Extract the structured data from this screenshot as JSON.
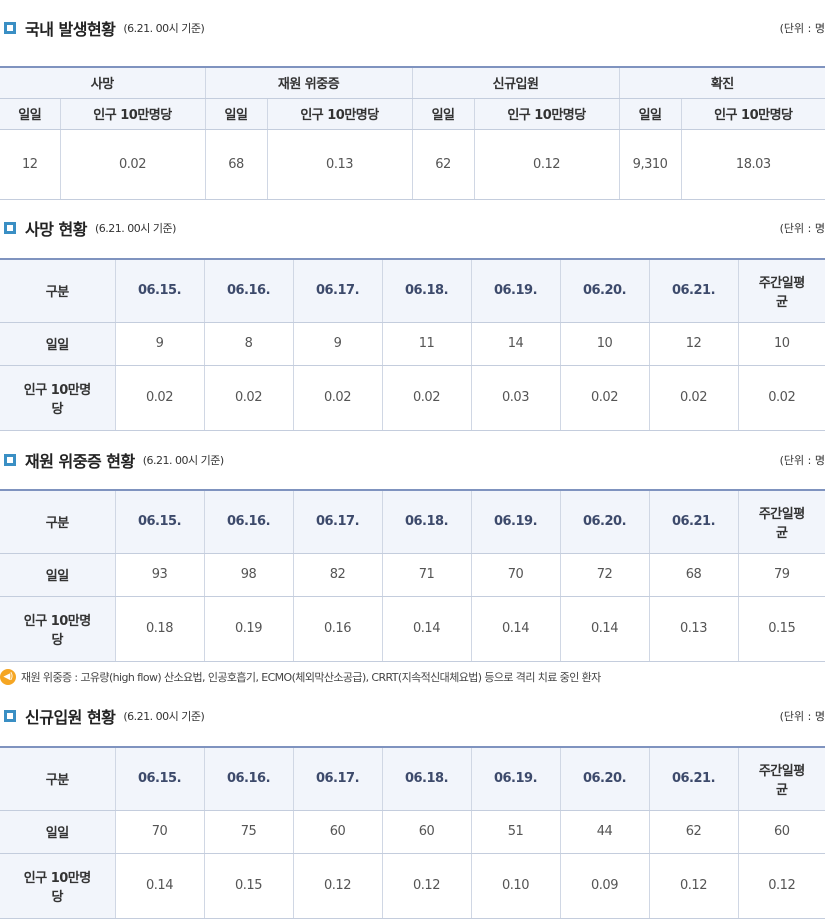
{
  "unit_label": "(단위 : 명",
  "summary": {
    "title": "국내 발생현황",
    "basis": "(6.21. 00시 기준)",
    "groups": [
      "사망",
      "재원 위중증",
      "신규입원",
      "확진"
    ],
    "sub_headers": [
      "일일",
      "인구 10만명당"
    ],
    "values": [
      [
        "12",
        "0.02"
      ],
      [
        "68",
        "0.13"
      ],
      [
        "62",
        "0.12"
      ],
      [
        "9,310",
        "18.03"
      ]
    ]
  },
  "sections": [
    {
      "title": "사망 현황",
      "basis": "(6.21. 00시 기준)",
      "headers": [
        "구분",
        "06.15.",
        "06.16.",
        "06.17.",
        "06.18.",
        "06.19.",
        "06.20.",
        "06.21.",
        "주간일평균"
      ],
      "rows": [
        {
          "label": "일일",
          "values": [
            "9",
            "8",
            "9",
            "11",
            "14",
            "10",
            "12",
            "10"
          ]
        },
        {
          "label": "인구 10만명당",
          "values": [
            "0.02",
            "0.02",
            "0.02",
            "0.02",
            "0.03",
            "0.02",
            "0.02",
            "0.02"
          ]
        }
      ]
    },
    {
      "title": "재원 위중증 현황",
      "basis": "(6.21. 00시 기준)",
      "headers": [
        "구분",
        "06.15.",
        "06.16.",
        "06.17.",
        "06.18.",
        "06.19.",
        "06.20.",
        "06.21.",
        "주간일평균"
      ],
      "rows": [
        {
          "label": "일일",
          "values": [
            "93",
            "98",
            "82",
            "71",
            "70",
            "72",
            "68",
            "79"
          ]
        },
        {
          "label": "인구 10만명당",
          "values": [
            "0.18",
            "0.19",
            "0.16",
            "0.14",
            "0.14",
            "0.14",
            "0.13",
            "0.15"
          ]
        }
      ]
    },
    {
      "title": "신규입원 현황",
      "basis": "(6.21. 00시 기준)",
      "headers": [
        "구분",
        "06.15.",
        "06.16.",
        "06.17.",
        "06.18.",
        "06.19.",
        "06.20.",
        "06.21.",
        "주간일평균"
      ],
      "rows": [
        {
          "label": "일일",
          "values": [
            "70",
            "75",
            "60",
            "60",
            "51",
            "44",
            "62",
            "60"
          ]
        },
        {
          "label": "인구 10만명당",
          "values": [
            "0.14",
            "0.15",
            "0.12",
            "0.12",
            "0.10",
            "0.09",
            "0.12",
            "0.12"
          ]
        }
      ]
    }
  ],
  "note": {
    "icon": "speaker-icon",
    "text": "재원 위중증 : 고유량(high flow) 산소요법, 인공호흡기, ECMO(체외막산소공급), CRRT(지속적신대체요법) 등으로 격리 치료 중인 환자"
  }
}
